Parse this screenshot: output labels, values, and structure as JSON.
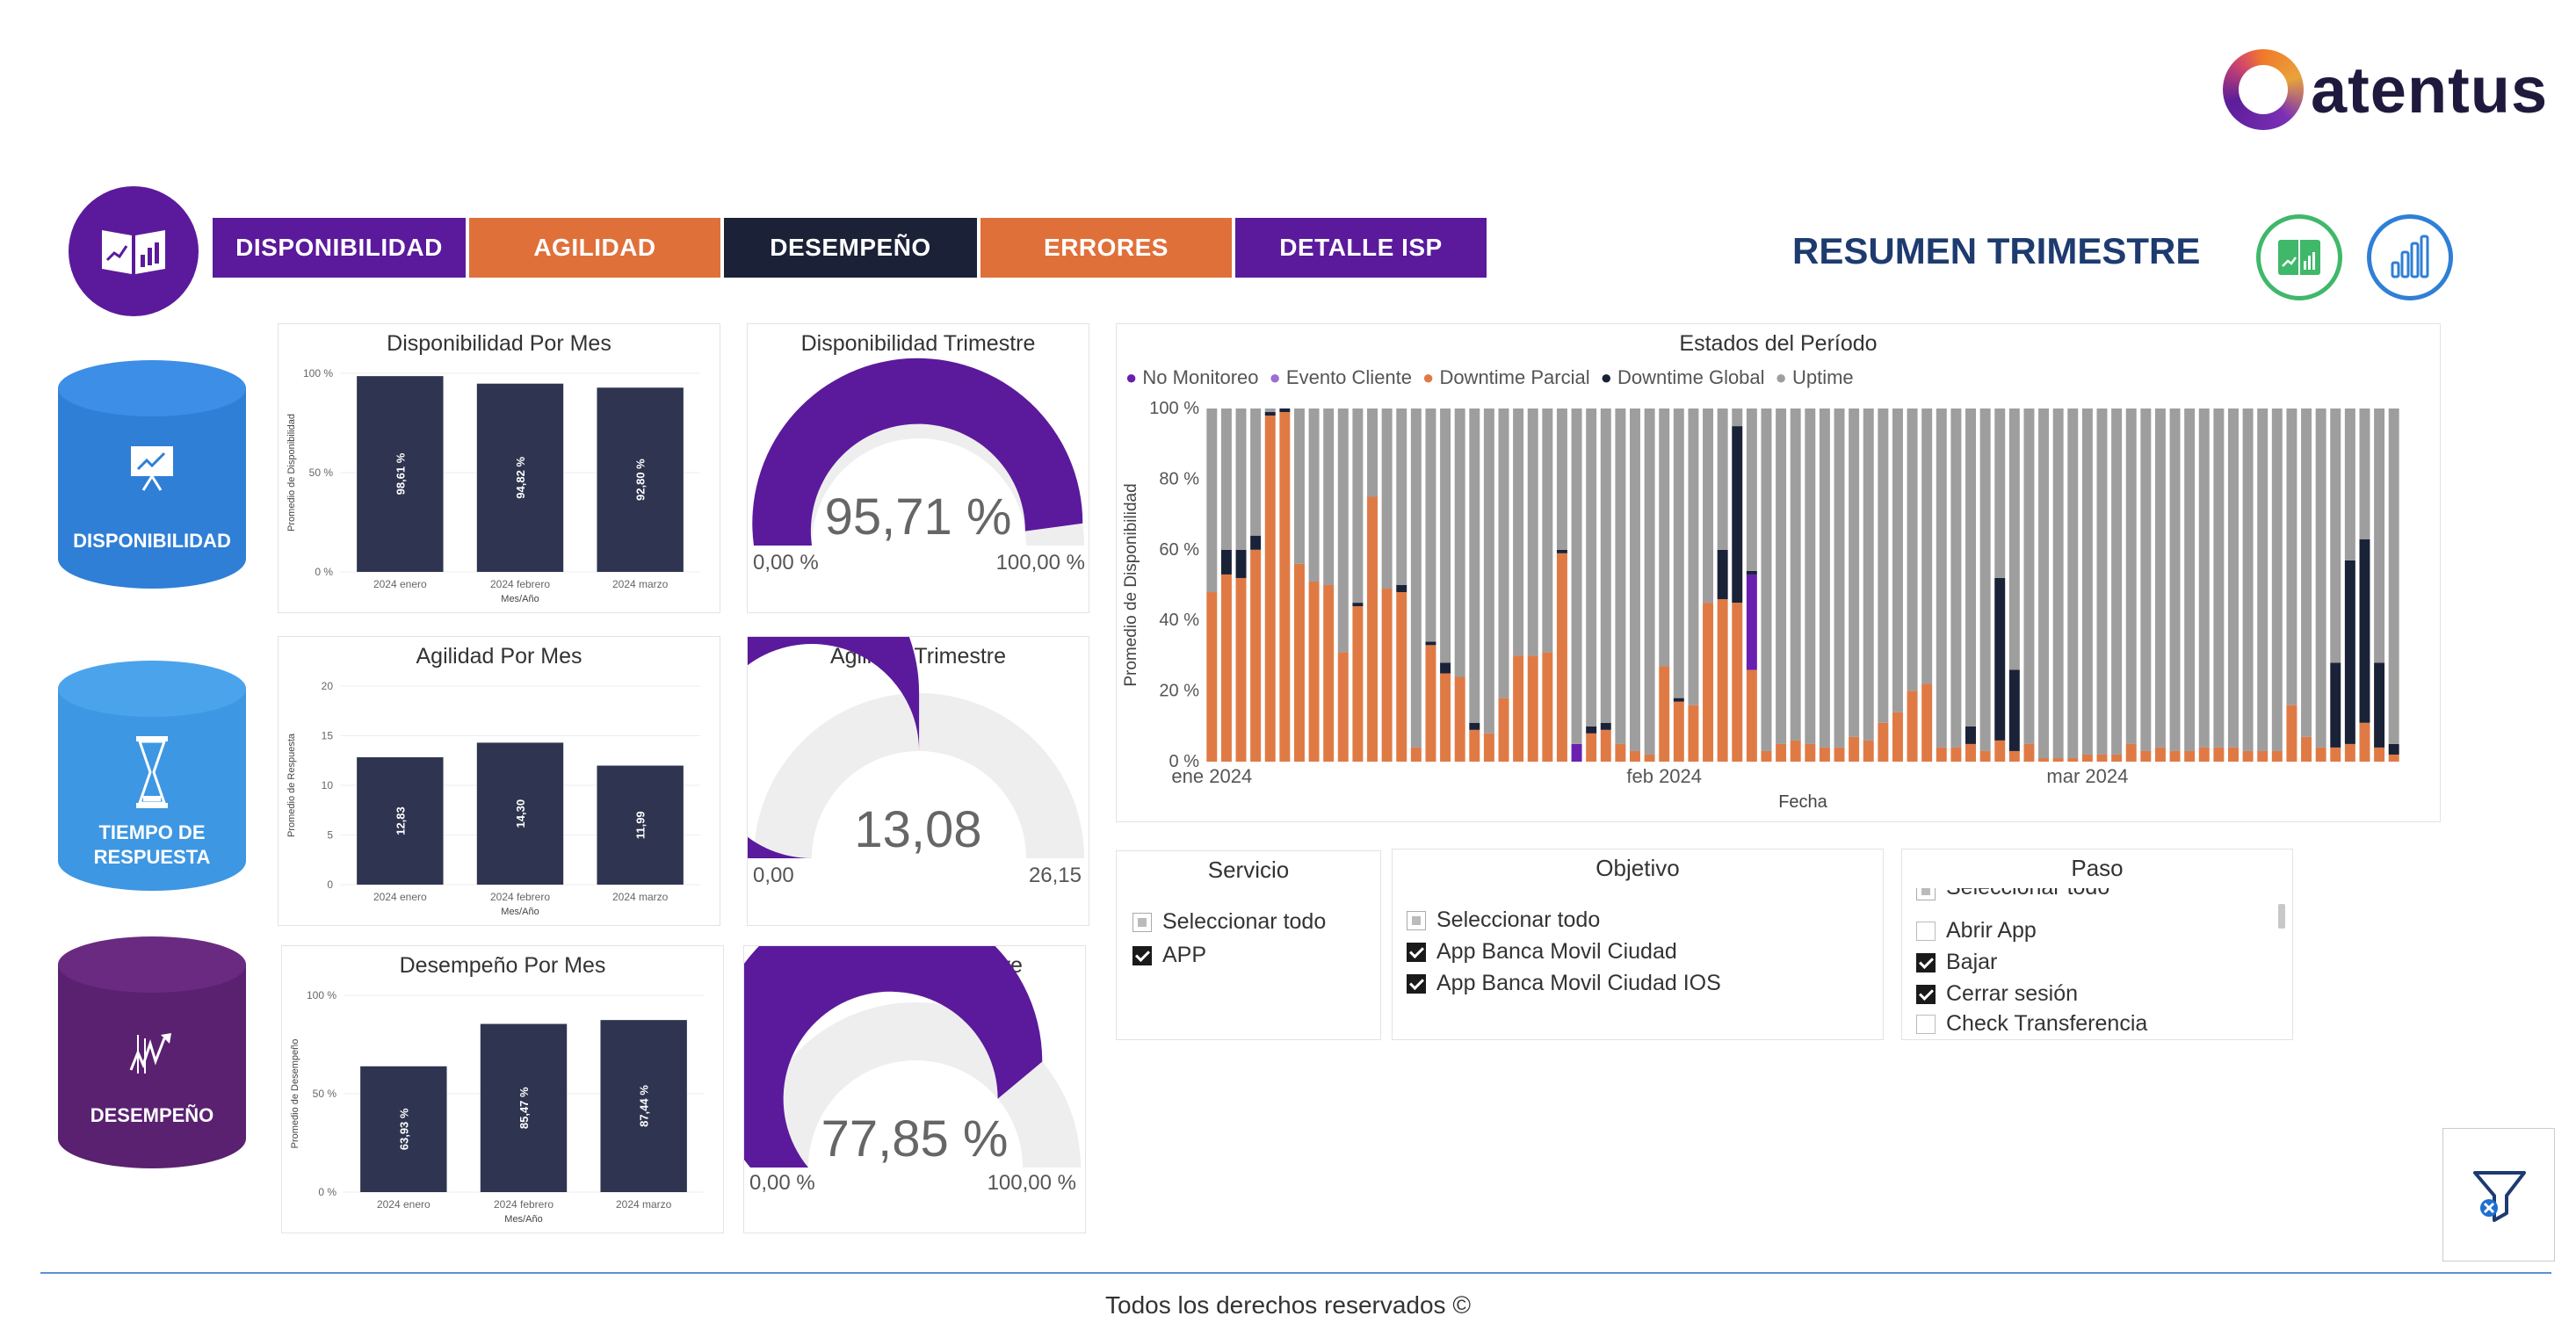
{
  "brand": {
    "name": "atentus"
  },
  "nav": {
    "tabs": [
      {
        "label": "DISPONIBILIDAD",
        "color": "#5b1a9c"
      },
      {
        "label": "AGILIDAD",
        "color": "#e0703a"
      },
      {
        "label": "DESEMPEÑO",
        "color": "#1b2137"
      },
      {
        "label": "ERRORES",
        "color": "#e0703a"
      },
      {
        "label": "DETALLE ISP",
        "color": "#5b1a9c"
      }
    ]
  },
  "header": {
    "title": "RESUMEN TRIMESTRE"
  },
  "sections": [
    {
      "label": "DISPONIBILIDAD",
      "color": "#2f7fd6",
      "icon": "chart-presentation-icon"
    },
    {
      "label_line1": "TIEMPO DE",
      "label_line2": "RESPUESTA",
      "color": "#3e97e2",
      "icon": "hourglass-icon"
    },
    {
      "label": "DESEMPEÑO",
      "color": "#5a2170",
      "icon": "performance-icon"
    }
  ],
  "chart_data": [
    {
      "type": "bar",
      "title": "Disponibilidad Por Mes",
      "categories": [
        "2024 enero",
        "2024 febrero",
        "2024 marzo"
      ],
      "values": [
        98.61,
        94.82,
        92.8
      ],
      "value_labels": [
        "98,61 %",
        "94,82 %",
        "92,80 %"
      ],
      "ylim": [
        0,
        100
      ],
      "yticks": [
        "100 %",
        "50 %",
        "0 %"
      ],
      "xlabel": "Mes/Año",
      "ylabel": "Promedio de Disponibilidad"
    },
    {
      "type": "gauge",
      "title": "Disponibilidad Trimestre",
      "value": 95.71,
      "value_label": "95,71 %",
      "min_label": "0,00 %",
      "max_label": "100,00 %",
      "min": 0,
      "max": 100
    },
    {
      "type": "bar",
      "title": "Agilidad Por Mes",
      "categories": [
        "2024 enero",
        "2024 febrero",
        "2024 marzo"
      ],
      "values": [
        12.83,
        14.3,
        11.99
      ],
      "value_labels": [
        "12,83",
        "14,30",
        "11,99"
      ],
      "ylim": [
        0,
        20
      ],
      "yticks": [
        "20",
        "15",
        "10",
        "5",
        "0"
      ],
      "xlabel": "Mes/Año",
      "ylabel": "Promedio de Respuesta"
    },
    {
      "type": "gauge",
      "title": "Agilidad Trimestre",
      "value": 13.08,
      "value_label": "13,08",
      "min_label": "0,00",
      "max_label": "26,15",
      "min": 0,
      "max": 26.15
    },
    {
      "type": "bar",
      "title": "Desempeño Por Mes",
      "categories": [
        "2024 enero",
        "2024 febrero",
        "2024 marzo"
      ],
      "values": [
        63.93,
        85.47,
        87.44
      ],
      "value_labels": [
        "63,93 %",
        "85,47 %",
        "87,44 %"
      ],
      "ylim": [
        0,
        100
      ],
      "yticks": [
        "100 %",
        "50 %",
        "0 %"
      ],
      "xlabel": "Mes/Año",
      "ylabel": "Promedio de Desempeño"
    },
    {
      "type": "gauge",
      "title": "Desempeño Trimestre",
      "value": 77.85,
      "value_label": "77,85 %",
      "min_label": "0,00 %",
      "max_label": "100,00 %",
      "min": 0,
      "max": 100
    },
    {
      "type": "bar",
      "stacked": true,
      "title": "Estados del Período",
      "xlabel": "Fecha",
      "ylabel": "Promedio de Disponibilidad",
      "ylim": [
        0,
        100
      ],
      "yticks": [
        "100 %",
        "80 %",
        "60 %",
        "40 %",
        "20 %",
        "0 %"
      ],
      "xticks": [
        {
          "label": "ene 2024",
          "index": 0
        },
        {
          "label": "feb 2024",
          "index": 31
        },
        {
          "label": "mar 2024",
          "index": 60
        }
      ],
      "legend": [
        {
          "name": "No Monitoreo",
          "color": "#6a1fb0"
        },
        {
          "name": "Evento Cliente",
          "color": "#9b6fd6"
        },
        {
          "name": "Downtime Parcial",
          "color": "#e07a45"
        },
        {
          "name": "Downtime Global",
          "color": "#1a2238"
        },
        {
          "name": "Uptime",
          "color": "#9e9e9e"
        }
      ],
      "days": 82,
      "downtime_parcial": [
        48,
        53,
        52,
        60,
        98,
        99,
        56,
        51,
        50,
        31,
        44,
        75,
        49,
        48,
        4,
        33,
        25,
        24,
        9,
        8,
        18,
        30,
        30,
        31,
        59,
        0,
        8,
        9,
        5,
        3,
        2,
        27,
        17,
        16,
        45,
        46,
        45,
        26,
        3,
        5,
        6,
        5,
        4,
        4,
        7,
        6,
        11,
        14,
        20,
        22,
        4,
        4,
        5,
        3,
        6,
        3,
        5,
        1,
        1,
        1,
        2,
        2,
        2,
        5,
        3,
        4,
        3,
        3,
        4,
        4,
        4,
        3,
        3,
        3,
        16,
        7,
        4,
        4,
        5,
        11,
        4,
        2
      ],
      "downtime_global": [
        0,
        7,
        8,
        4,
        1,
        1,
        0,
        0,
        0,
        0,
        1,
        0,
        0,
        2,
        0,
        1,
        3,
        0,
        2,
        0,
        0,
        0,
        0,
        0,
        1,
        0,
        2,
        2,
        0,
        0,
        0,
        0,
        1,
        0,
        0,
        14,
        50,
        1,
        0,
        0,
        0,
        0,
        0,
        0,
        0,
        0,
        0,
        0,
        0,
        0,
        0,
        0,
        5,
        0,
        46,
        23,
        0,
        0,
        0,
        0,
        0,
        0,
        0,
        0,
        0,
        0,
        0,
        0,
        0,
        0,
        0,
        0,
        0,
        0,
        0,
        0,
        0,
        24,
        52,
        52,
        24,
        3
      ],
      "no_monitoreo": [
        0,
        0,
        0,
        0,
        0,
        0,
        0,
        0,
        0,
        0,
        0,
        0,
        0,
        0,
        0,
        0,
        0,
        0,
        0,
        0,
        0,
        0,
        0,
        0,
        0,
        5,
        0,
        0,
        0,
        0,
        0,
        0,
        0,
        0,
        0,
        0,
        0,
        27,
        0,
        0,
        0,
        0,
        0,
        0,
        0,
        0,
        0,
        0,
        0,
        0,
        0,
        0,
        0,
        0,
        0,
        0,
        0,
        0,
        0,
        0,
        0,
        0,
        0,
        0,
        0,
        0,
        0,
        0,
        0,
        0,
        0,
        0,
        0,
        0,
        0,
        0,
        0,
        0,
        0,
        0,
        0,
        0
      ],
      "evento_cliente": [
        0,
        0,
        0,
        0,
        0,
        0,
        0,
        0,
        0,
        0,
        0,
        0,
        0,
        0,
        0,
        0,
        0,
        0,
        0,
        0,
        0,
        0,
        0,
        0,
        0,
        0,
        0,
        0,
        0,
        0,
        0,
        0,
        0,
        0,
        0,
        0,
        0,
        0,
        0,
        0,
        0,
        0,
        0,
        0,
        0,
        0,
        0,
        0,
        0,
        0,
        0,
        0,
        0,
        0,
        0,
        0,
        0,
        0,
        0,
        0,
        0,
        0,
        0,
        0,
        0,
        0,
        0,
        0,
        0,
        0,
        0,
        0,
        0,
        0,
        0,
        0,
        0,
        0,
        0,
        0,
        0,
        0
      ]
    }
  ],
  "slicers": {
    "servicio": {
      "title": "Servicio",
      "options": [
        {
          "label": "Seleccionar todo",
          "state": "partial"
        },
        {
          "label": "APP",
          "state": "checked"
        }
      ]
    },
    "objetivo": {
      "title": "Objetivo",
      "options": [
        {
          "label": "Seleccionar todo",
          "state": "partial"
        },
        {
          "label": "App Banca Movil Ciudad",
          "state": "checked"
        },
        {
          "label": "App Banca Movil Ciudad IOS",
          "state": "checked"
        }
      ]
    },
    "paso": {
      "title": "Paso",
      "options": [
        {
          "label": "Seleccionar todo",
          "state": "partial"
        },
        {
          "label": "Abrir App",
          "state": "empty"
        },
        {
          "label": "Bajar",
          "state": "checked"
        },
        {
          "label": "Cerrar sesión",
          "state": "checked"
        },
        {
          "label": "Check Transferencia",
          "state": "empty"
        }
      ]
    }
  },
  "footer": {
    "text": "Todos los derechos reservados ©"
  }
}
